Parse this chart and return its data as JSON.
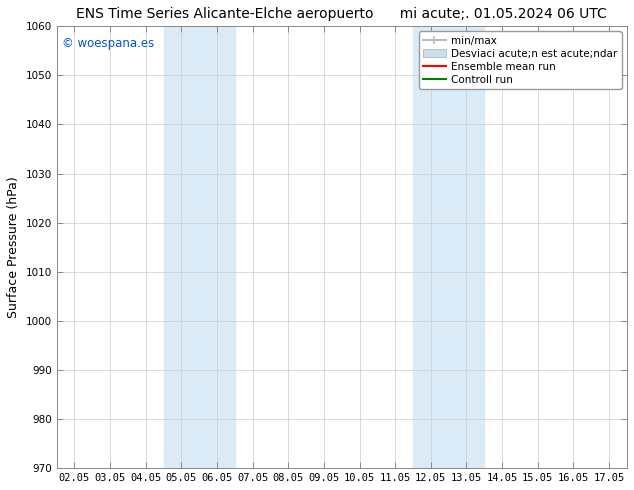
{
  "title": "ENS Time Series Alicante-Elche aeropuerto      mi acute;. 01.05.2024 06 UTC",
  "ylabel": "Surface Pressure (hPa)",
  "watermark": "© woespana.es",
  "watermark_color": "#0055cc",
  "ylim": [
    970,
    1060
  ],
  "yticks": [
    970,
    980,
    990,
    1000,
    1010,
    1020,
    1030,
    1040,
    1050,
    1060
  ],
  "xtick_labels": [
    "02.05",
    "03.05",
    "04.05",
    "05.05",
    "06.05",
    "07.05",
    "08.05",
    "09.05",
    "10.05",
    "11.05",
    "12.05",
    "13.05",
    "14.05",
    "15.05",
    "16.05",
    "17.05"
  ],
  "xtick_positions": [
    0,
    1,
    2,
    3,
    4,
    5,
    6,
    7,
    8,
    9,
    10,
    11,
    12,
    13,
    14,
    15
  ],
  "xlim": [
    -0.5,
    15.5
  ],
  "shaded_regions": [
    {
      "xstart": 2.5,
      "xend": 4.5,
      "color": "#daeaf7"
    },
    {
      "xstart": 9.5,
      "xend": 11.5,
      "color": "#daeaf7"
    }
  ],
  "background_color": "#ffffff",
  "plot_bg_color": "#ffffff",
  "grid_color": "#cccccc",
  "legend_labels": [
    "min/max",
    "Desviaci acute;n est acute;ndar",
    "Ensemble mean run",
    "Controll run"
  ],
  "legend_colors": [
    "#bbbbbb",
    "#c8dff0",
    "#ff0000",
    "#008000"
  ],
  "title_fontsize": 10,
  "tick_fontsize": 7.5,
  "ylabel_fontsize": 9
}
